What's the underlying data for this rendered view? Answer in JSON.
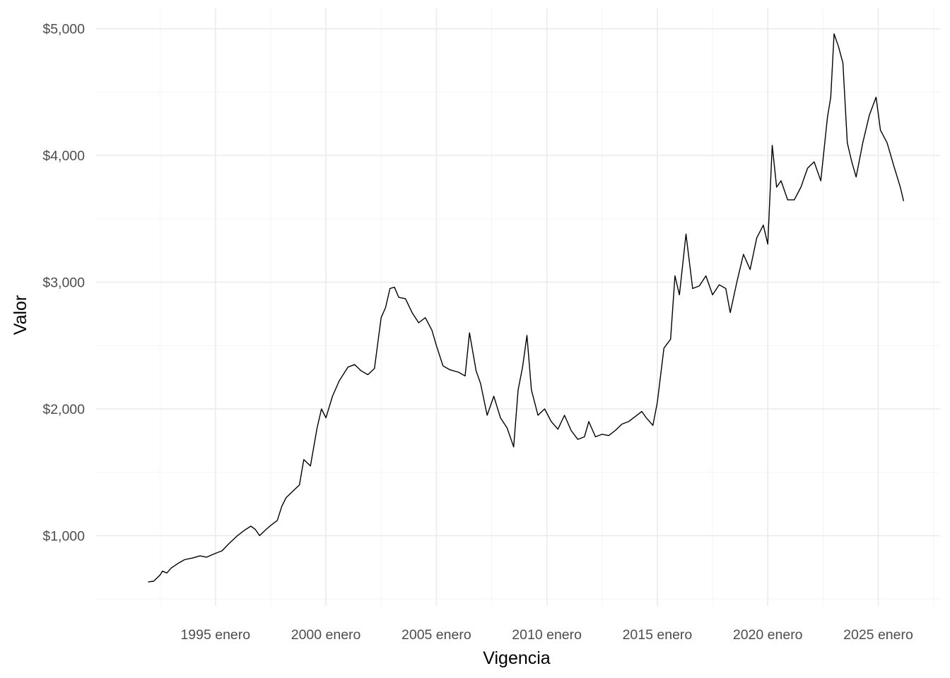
{
  "chart_data": {
    "type": "line",
    "title": "",
    "xlabel": "Vigencia",
    "ylabel": "Valor",
    "x_ticks": [
      {
        "year": 1995,
        "label": "1995 enero"
      },
      {
        "year": 2000,
        "label": "2000 enero"
      },
      {
        "year": 2005,
        "label": "2005 enero"
      },
      {
        "year": 2010,
        "label": "2010 enero"
      },
      {
        "year": 2015,
        "label": "2015 enero"
      },
      {
        "year": 2020,
        "label": "2020 enero"
      },
      {
        "year": 2025,
        "label": "2025 enero"
      }
    ],
    "y_ticks": [
      {
        "value": 1000,
        "label": "$1,000"
      },
      {
        "value": 2000,
        "label": "$2,000"
      },
      {
        "value": 3000,
        "label": "$3,000"
      },
      {
        "value": 4000,
        "label": "$4,000"
      },
      {
        "value": 5000,
        "label": "$5,000"
      }
    ],
    "xlim": [
      1989.6,
      2027.8
    ],
    "ylim": [
      445,
      5160
    ],
    "grid": true,
    "legend": "none",
    "line_color": "#000000",
    "series": [
      {
        "x": [
          1991.95,
          1992.2,
          1992.5,
          1992.6,
          1992.8,
          1993.0,
          1993.3,
          1993.6,
          1994.0,
          1994.3,
          1994.6,
          1995.0,
          1995.3,
          1995.6,
          1996.0,
          1996.3,
          1996.6,
          1996.8,
          1997.0,
          1997.3,
          1997.5,
          1997.8,
          1998.0,
          1998.2,
          1998.5,
          1998.8,
          1999.0,
          1999.3,
          1999.6,
          1999.8,
          2000.0,
          2000.3,
          2000.6,
          2001.0,
          2001.3,
          2001.6,
          2001.9,
          2002.2,
          2002.5,
          2002.7,
          2002.9,
          2003.1,
          2003.3,
          2003.6,
          2003.9,
          2004.2,
          2004.5,
          2004.8,
          2005.0,
          2005.3,
          2005.6,
          2006.0,
          2006.3,
          2006.5,
          2006.8,
          2007.0,
          2007.3,
          2007.6,
          2007.9,
          2008.2,
          2008.5,
          2008.7,
          2008.9,
          2009.1,
          2009.3,
          2009.6,
          2009.9,
          2010.2,
          2010.5,
          2010.8,
          2011.1,
          2011.4,
          2011.7,
          2011.9,
          2012.2,
          2012.5,
          2012.8,
          2013.1,
          2013.4,
          2013.7,
          2014.0,
          2014.3,
          2014.5,
          2014.8,
          2015.0,
          2015.3,
          2015.6,
          2015.8,
          2016.0,
          2016.3,
          2016.6,
          2016.9,
          2017.2,
          2017.5,
          2017.8,
          2018.1,
          2018.3,
          2018.6,
          2018.9,
          2019.2,
          2019.5,
          2019.8,
          2020.0,
          2020.2,
          2020.4,
          2020.6,
          2020.9,
          2021.2,
          2021.5,
          2021.8,
          2022.1,
          2022.4,
          2022.7,
          2022.85,
          2023.0,
          2023.2,
          2023.4,
          2023.6,
          2023.8,
          2024.0,
          2024.3,
          2024.6,
          2024.9,
          2025.1,
          2025.4,
          2025.7,
          2026.0,
          2026.15
        ],
        "y": [
          635,
          640,
          690,
          720,
          705,
          745,
          780,
          810,
          825,
          840,
          830,
          860,
          880,
          935,
          1000,
          1040,
          1075,
          1050,
          1000,
          1050,
          1080,
          1120,
          1230,
          1300,
          1350,
          1400,
          1600,
          1550,
          1850,
          2000,
          1930,
          2100,
          2220,
          2330,
          2350,
          2300,
          2270,
          2320,
          2720,
          2800,
          2950,
          2960,
          2880,
          2870,
          2760,
          2680,
          2720,
          2620,
          2500,
          2340,
          2310,
          2290,
          2260,
          2600,
          2300,
          2200,
          1950,
          2100,
          1930,
          1850,
          1700,
          2150,
          2330,
          2580,
          2150,
          1950,
          2000,
          1900,
          1840,
          1950,
          1830,
          1760,
          1780,
          1900,
          1780,
          1800,
          1790,
          1830,
          1880,
          1900,
          1940,
          1980,
          1930,
          1870,
          2050,
          2480,
          2550,
          3050,
          2900,
          3380,
          2950,
          2970,
          3050,
          2900,
          2980,
          2950,
          2760,
          3000,
          3220,
          3100,
          3350,
          3450,
          3300,
          4080,
          3750,
          3800,
          3650,
          3650,
          3750,
          3900,
          3950,
          3800,
          4300,
          4460,
          4960,
          4860,
          4730,
          4100,
          3950,
          3830,
          4100,
          4320,
          4460,
          4200,
          4100,
          3920,
          3750,
          3640
        ]
      }
    ]
  }
}
